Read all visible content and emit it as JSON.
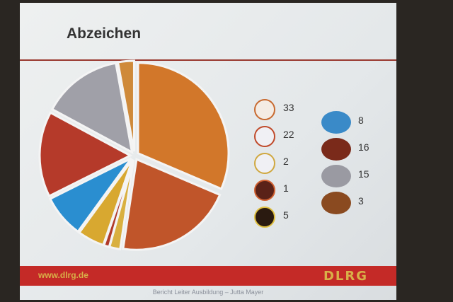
{
  "slide": {
    "title": "Abzeichen",
    "url": "www.dlrg.de",
    "logo": "DLRG",
    "footer": "Bericht Leiter Ausbildung – Jutta Mayer"
  },
  "chart_data": {
    "type": "pie",
    "title": "Abzeichen",
    "order": "clockwise from top",
    "slices": [
      {
        "badge": "seahorse",
        "value": 33,
        "color": "#d2772a"
      },
      {
        "badge": "diver-red",
        "value": 22,
        "color": "#c0552a"
      },
      {
        "badge": "diver-yellow",
        "value": 2,
        "color": "#d9b040"
      },
      {
        "badge": "diver-dark",
        "value": 1,
        "color": "#b03a2a"
      },
      {
        "badge": "diver-gold",
        "value": 5,
        "color": "#d8a830"
      },
      {
        "badge": "blue-oval",
        "value": 8,
        "color": "#2a8ed0"
      },
      {
        "badge": "bronze-oval-dark",
        "value": 16,
        "color": "#b53a2a"
      },
      {
        "badge": "silver-oval",
        "value": 15,
        "color": "#a0a0a8"
      },
      {
        "badge": "bronze-oval",
        "value": 3,
        "color": "#cf8a3a"
      }
    ],
    "legend_left": [
      {
        "value": 33,
        "badge_color": "#c86a30",
        "badge_bg": "#f4ece4"
      },
      {
        "value": 22,
        "badge_color": "#c04a2a",
        "badge_bg": "#f0f0f4"
      },
      {
        "value": 2,
        "badge_color": "#d0a840",
        "badge_bg": "#f0f0f4"
      },
      {
        "value": 1,
        "badge_color": "#d06030",
        "badge_bg": "#5a2218"
      },
      {
        "value": 5,
        "badge_color": "#e0c040",
        "badge_bg": "#2a1a10"
      }
    ],
    "legend_right": [
      {
        "value": 8,
        "badge_color": "#3a8ac8"
      },
      {
        "value": 16,
        "badge_color": "#7a2a1a"
      },
      {
        "value": 15,
        "badge_color": "#9a9aa2"
      },
      {
        "value": 3,
        "badge_color": "#8a4a20"
      }
    ]
  }
}
